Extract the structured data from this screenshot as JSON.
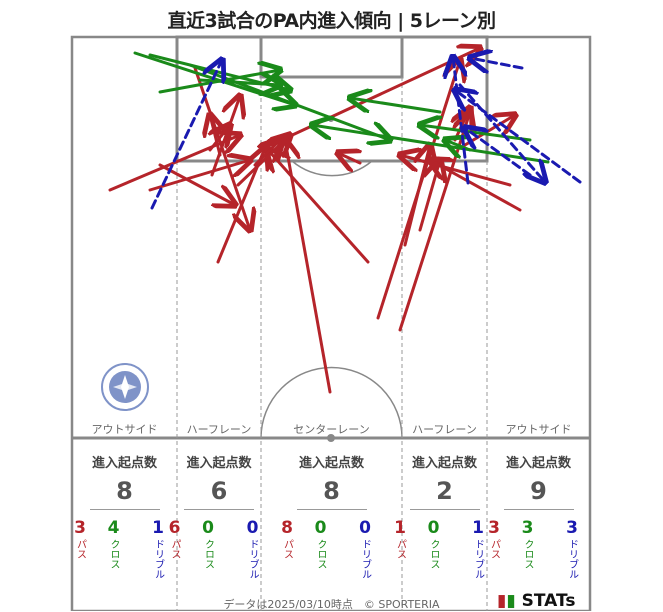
{
  "title": "直近3試合のPA内進入傾向 | 5レーン別",
  "lanes": [
    {
      "label": "アウトサイド",
      "head": "進入起点数",
      "total": "8",
      "pass": "3",
      "cross": "4",
      "dribble": "1"
    },
    {
      "label": "ハーフレーン",
      "head": "進入起点数",
      "total": "6",
      "pass": "6",
      "cross": "0",
      "dribble": "0"
    },
    {
      "label": "センターレーン",
      "head": "進入起点数",
      "total": "8",
      "pass": "8",
      "cross": "0",
      "dribble": "0"
    },
    {
      "label": "ハーフレーン",
      "head": "進入起点数",
      "total": "2",
      "pass": "1",
      "cross": "0",
      "dribble": "1"
    },
    {
      "label": "アウトサイド",
      "head": "進入起点数",
      "total": "9",
      "pass": "3",
      "cross": "3",
      "dribble": "3"
    }
  ],
  "labels": {
    "pass": "パス",
    "cross": "クロス",
    "dribble": "ドリブル"
  },
  "footer": "データは2025/03/10時点　© SPORTERIA",
  "brand": "STATs",
  "colors": {
    "pass": "#b5242a",
    "cross": "#1a8a1a",
    "dribble": "#1a1ab0",
    "pitch_line": "#888888"
  }
}
